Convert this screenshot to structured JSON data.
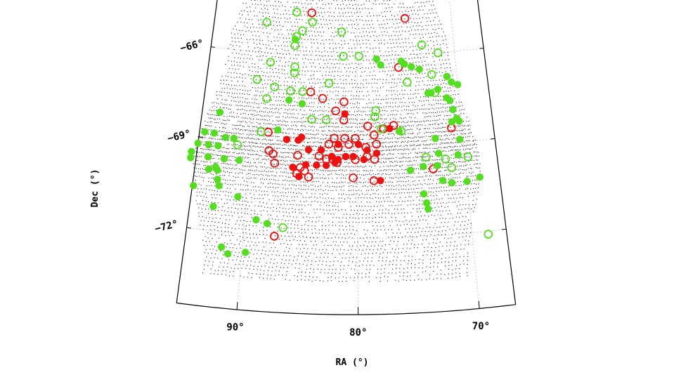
{
  "chart_data": {
    "type": "scatter",
    "projection": "polar (zenithal) projection, curved RA/Dec grid",
    "xlabel": "RA (°)",
    "ylabel": "Dec (°)",
    "x_ticks": [
      "90°",
      "80°",
      "70°"
    ],
    "x_tick_values": [
      90,
      80,
      70
    ],
    "y_ticks": [
      "−66°",
      "−69°",
      "−72°"
    ],
    "y_tick_values": [
      -66,
      -69,
      -72
    ],
    "xlim": [
      95,
      67
    ],
    "ylim": [
      -74.5,
      -62.5
    ],
    "grid": "dotted",
    "background_points": "dense field of small black dots covering the survey footprint",
    "colors": {
      "red": "#ee1111",
      "green": "#55dd22",
      "grid": "#bbbbbb",
      "dot": "#111111"
    },
    "series": [
      {
        "marker": "open circle",
        "color": "#ee1111",
        "points": [
          [
            84.8,
            -64.6
          ],
          [
            74.9,
            -64.8
          ],
          [
            75.8,
            -66.4
          ],
          [
            84.6,
            -67.2
          ],
          [
            83.4,
            -67.4
          ],
          [
            81.3,
            -67.5
          ],
          [
            82.1,
            -67.8
          ],
          [
            81.3,
            -68.1
          ],
          [
            79.0,
            -68.3
          ],
          [
            76.5,
            -68.3
          ],
          [
            71.0,
            -68.5
          ],
          [
            88.5,
            -68.6
          ],
          [
            82.2,
            -68.7
          ],
          [
            81.2,
            -68.7
          ],
          [
            80.2,
            -68.7
          ],
          [
            78.4,
            -68.6
          ],
          [
            77.5,
            -68.4
          ],
          [
            82.7,
            -68.9
          ],
          [
            81.8,
            -69.0
          ],
          [
            80.8,
            -68.9
          ],
          [
            79.2,
            -69.0
          ],
          [
            78.2,
            -68.9
          ],
          [
            88.3,
            -69.2
          ],
          [
            87.9,
            -69.3
          ],
          [
            85.6,
            -69.3
          ],
          [
            83.6,
            -69.3
          ],
          [
            82.9,
            -69.4
          ],
          [
            82.3,
            -69.4
          ],
          [
            81.9,
            -69.5
          ],
          [
            80.2,
            -69.4
          ],
          [
            79.1,
            -69.3
          ],
          [
            78.4,
            -69.4
          ],
          [
            87.7,
            -69.6
          ],
          [
            85.3,
            -69.7
          ],
          [
            84.9,
            -69.8
          ],
          [
            85.6,
            -69.9
          ],
          [
            84.5,
            -70.0
          ],
          [
            80.4,
            -70.0
          ],
          [
            78.5,
            -70.1
          ],
          [
            73.0,
            -69.8
          ],
          [
            87.3,
            -72.0
          ]
        ]
      },
      {
        "marker": "filled circle",
        "color": "#ee1111",
        "points": [
          [
            81.2,
            -67.9
          ],
          [
            76.9,
            -68.4
          ],
          [
            86.7,
            -68.8
          ],
          [
            85.6,
            -68.8
          ],
          [
            85.3,
            -68.7
          ],
          [
            81.8,
            -68.9
          ],
          [
            79.9,
            -68.9
          ],
          [
            84.6,
            -69.1
          ],
          [
            83.4,
            -69.1
          ],
          [
            79.1,
            -69.1
          ],
          [
            78.2,
            -69.2
          ],
          [
            82.4,
            -69.3
          ],
          [
            81.8,
            -69.4
          ],
          [
            81.1,
            -69.3
          ],
          [
            80.4,
            -69.3
          ],
          [
            79.4,
            -69.4
          ],
          [
            86.0,
            -69.7
          ],
          [
            84.8,
            -69.6
          ],
          [
            83.8,
            -69.6
          ],
          [
            82.9,
            -69.6
          ],
          [
            82.1,
            -69.5
          ],
          [
            85.4,
            -70.0
          ],
          [
            77.9,
            -70.1
          ]
        ]
      },
      {
        "marker": "open circle",
        "color": "#55dd22",
        "points": [
          [
            86.4,
            -64.6
          ],
          [
            84.7,
            -64.9
          ],
          [
            89.5,
            -65.0
          ],
          [
            85.7,
            -65.2
          ],
          [
            81.6,
            -65.2
          ],
          [
            86.3,
            -65.4
          ],
          [
            86.4,
            -65.7
          ],
          [
            73.3,
            -65.7
          ],
          [
            79.8,
            -66.0
          ],
          [
            81.4,
            -66.0
          ],
          [
            71.7,
            -66.0
          ],
          [
            88.8,
            -66.3
          ],
          [
            86.3,
            -66.4
          ],
          [
            86.3,
            -66.6
          ],
          [
            72.5,
            -66.7
          ],
          [
            90.0,
            -66.9
          ],
          [
            82.8,
            -66.9
          ],
          [
            75.0,
            -66.9
          ],
          [
            88.2,
            -67.1
          ],
          [
            86.6,
            -67.2
          ],
          [
            85.4,
            -67.2
          ],
          [
            72.3,
            -67.3
          ],
          [
            88.9,
            -67.5
          ],
          [
            78.2,
            -67.8
          ],
          [
            78.3,
            -68.0
          ],
          [
            84.4,
            -68.1
          ],
          [
            83.0,
            -68.1
          ],
          [
            77.7,
            -68.4
          ],
          [
            75.8,
            -68.5
          ],
          [
            89.2,
            -68.6
          ],
          [
            91.3,
            -69.1
          ],
          [
            73.6,
            -69.4
          ],
          [
            71.8,
            -69.5
          ],
          [
            69.7,
            -69.5
          ],
          [
            71.3,
            -69.8
          ],
          [
            86.6,
            -71.7
          ],
          [
            68.6,
            -72.1
          ]
        ]
      },
      {
        "marker": "filled circle",
        "color": "#55dd22",
        "points": [
          [
            86.4,
            -65.5
          ],
          [
            78.0,
            -66.1
          ],
          [
            77.6,
            -66.3
          ],
          [
            75.5,
            -66.2
          ],
          [
            75.2,
            -66.3
          ],
          [
            74.5,
            -66.4
          ],
          [
            73.7,
            -66.5
          ],
          [
            71.0,
            -66.8
          ],
          [
            70.6,
            -67.0
          ],
          [
            70.0,
            -67.1
          ],
          [
            72.0,
            -67.2
          ],
          [
            72.7,
            -67.3
          ],
          [
            73.0,
            -67.3
          ],
          [
            71.2,
            -67.5
          ],
          [
            86.7,
            -67.5
          ],
          [
            85.4,
            -67.6
          ],
          [
            70.9,
            -67.6
          ],
          [
            70.7,
            -67.9
          ],
          [
            93.3,
            -68.1
          ],
          [
            70.4,
            -68.2
          ],
          [
            70.9,
            -68.3
          ],
          [
            70.2,
            -68.3
          ],
          [
            87.6,
            -68.5
          ],
          [
            76.0,
            -68.5
          ],
          [
            94.5,
            -68.8
          ],
          [
            93.6,
            -68.8
          ],
          [
            92.5,
            -68.9
          ],
          [
            91.7,
            -68.9
          ],
          [
            72.6,
            -68.8
          ],
          [
            70.3,
            -68.9
          ],
          [
            95.0,
            -69.2
          ],
          [
            94.0,
            -69.2
          ],
          [
            93.1,
            -69.2
          ],
          [
            72.4,
            -69.3
          ],
          [
            70.6,
            -69.4
          ],
          [
            95.5,
            -69.5
          ],
          [
            93.9,
            -69.6
          ],
          [
            92.4,
            -69.6
          ],
          [
            91.0,
            -69.6
          ],
          [
            73.9,
            -69.7
          ],
          [
            72.6,
            -69.7
          ],
          [
            75.1,
            -69.8
          ],
          [
            95.5,
            -69.7
          ],
          [
            93.1,
            -69.9
          ],
          [
            92.9,
            -70.0
          ],
          [
            93.7,
            -70.0
          ],
          [
            72.2,
            -70.2
          ],
          [
            71.4,
            -70.3
          ],
          [
            70.0,
            -70.3
          ],
          [
            68.8,
            -70.2
          ],
          [
            92.8,
            -70.3
          ],
          [
            92.6,
            -70.5
          ],
          [
            94.9,
            -70.6
          ],
          [
            74.0,
            -70.6
          ],
          [
            90.8,
            -70.8
          ],
          [
            73.8,
            -70.9
          ],
          [
            92.9,
            -71.2
          ],
          [
            73.7,
            -71.1
          ],
          [
            89.0,
            -71.5
          ],
          [
            88.0,
            -71.6
          ],
          [
            91.8,
            -72.5
          ],
          [
            91.2,
            -72.7
          ],
          [
            89.7,
            -72.6
          ]
        ]
      }
    ]
  }
}
